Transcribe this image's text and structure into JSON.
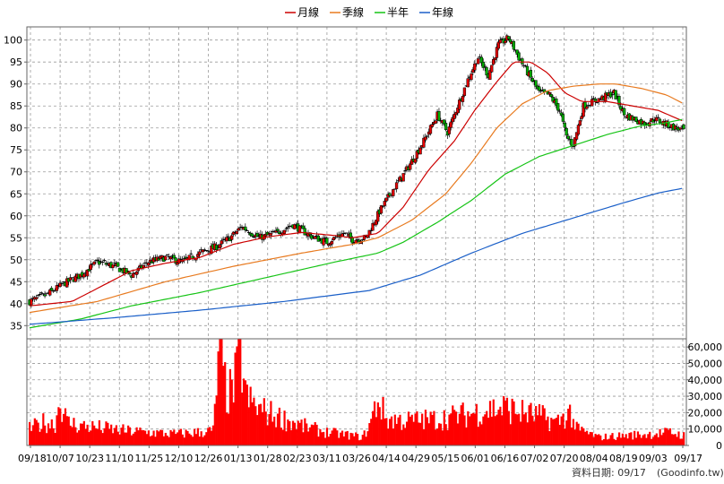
{
  "chart_data": {
    "type": "candlestick",
    "legend": [
      {
        "name": "月線",
        "color": "#cc0000"
      },
      {
        "name": "季線",
        "color": "#e87a1f"
      },
      {
        "name": "半年",
        "color": "#16c416"
      },
      {
        "name": "年線",
        "color": "#1a5fc8"
      }
    ],
    "price_axis": {
      "ylim": [
        32,
        103
      ],
      "ticks": [
        35,
        40,
        45,
        50,
        55,
        60,
        65,
        70,
        75,
        80,
        85,
        90,
        95,
        100
      ],
      "side": "left"
    },
    "volume_axis": {
      "ylim": [
        0,
        65000
      ],
      "ticks": [
        0,
        10000,
        20000,
        30000,
        40000,
        50000,
        60000
      ],
      "tick_labels": [
        "0",
        "10,000",
        "20,000",
        "30,000",
        "40,000",
        "50,000",
        "60,000"
      ],
      "side": "right"
    },
    "x_ticks": [
      "09/18",
      "10/07",
      "10/23",
      "11/10",
      "11/25",
      "12/10",
      "12/26",
      "01/13",
      "01/28",
      "02/23",
      "03/11",
      "03/26",
      "04/14",
      "04/29",
      "05/15",
      "06/01",
      "06/16",
      "07/02",
      "07/20",
      "08/04",
      "08/19",
      "09/03",
      "09/17"
    ],
    "close_keypoints": [
      [
        0,
        40.5
      ],
      [
        10,
        42
      ],
      [
        20,
        44.5
      ],
      [
        30,
        46.5
      ],
      [
        40,
        49.5
      ],
      [
        50,
        48.5
      ],
      [
        60,
        46.5
      ],
      [
        70,
        49.5
      ],
      [
        80,
        50.5
      ],
      [
        90,
        49.5
      ],
      [
        100,
        51.5
      ],
      [
        110,
        53
      ],
      [
        118,
        55
      ],
      [
        125,
        57.5
      ],
      [
        135,
        55
      ],
      [
        145,
        56
      ],
      [
        155,
        58
      ],
      [
        165,
        55.5
      ],
      [
        175,
        54
      ],
      [
        185,
        56
      ],
      [
        190,
        54.5
      ],
      [
        198,
        55
      ],
      [
        206,
        61
      ],
      [
        214,
        66
      ],
      [
        222,
        70.5
      ],
      [
        232,
        77
      ],
      [
        240,
        83
      ],
      [
        246,
        79
      ],
      [
        252,
        85
      ],
      [
        258,
        91
      ],
      [
        264,
        96
      ],
      [
        270,
        92
      ],
      [
        276,
        99
      ],
      [
        282,
        100.5
      ],
      [
        288,
        96
      ],
      [
        294,
        92
      ],
      [
        300,
        88
      ],
      [
        306,
        87.5
      ],
      [
        312,
        84
      ],
      [
        316,
        78
      ],
      [
        320,
        76
      ],
      [
        326,
        85
      ],
      [
        332,
        86
      ],
      [
        338,
        87
      ],
      [
        344,
        88
      ],
      [
        350,
        83
      ],
      [
        356,
        82
      ],
      [
        362,
        81
      ],
      [
        368,
        82
      ],
      [
        374,
        81
      ],
      [
        380,
        80
      ],
      [
        385,
        79.5
      ]
    ],
    "moving_averages": {
      "月線": [
        [
          0,
          39.5
        ],
        [
          25,
          40.5
        ],
        [
          45,
          44.5
        ],
        [
          60,
          47.5
        ],
        [
          80,
          49.2
        ],
        [
          100,
          50.5
        ],
        [
          120,
          53.5
        ],
        [
          140,
          55.2
        ],
        [
          160,
          56.2
        ],
        [
          180,
          55.5
        ],
        [
          190,
          55
        ],
        [
          205,
          56
        ],
        [
          220,
          62
        ],
        [
          235,
          70.5
        ],
        [
          250,
          77
        ],
        [
          262,
          84
        ],
        [
          275,
          90.5
        ],
        [
          285,
          95
        ],
        [
          295,
          95
        ],
        [
          305,
          92.5
        ],
        [
          315,
          88
        ],
        [
          325,
          86
        ],
        [
          340,
          86
        ],
        [
          355,
          85
        ],
        [
          370,
          84
        ],
        [
          385,
          81.5
        ]
      ],
      "季線": [
        [
          0,
          38
        ],
        [
          40,
          40.5
        ],
        [
          80,
          45
        ],
        [
          120,
          48.5
        ],
        [
          160,
          51.5
        ],
        [
          190,
          53.5
        ],
        [
          205,
          55
        ],
        [
          225,
          59
        ],
        [
          245,
          65
        ],
        [
          260,
          72
        ],
        [
          275,
          80
        ],
        [
          290,
          85.5
        ],
        [
          305,
          88.5
        ],
        [
          320,
          89.5
        ],
        [
          335,
          90
        ],
        [
          345,
          90
        ],
        [
          360,
          89
        ],
        [
          375,
          87.5
        ],
        [
          385,
          85.5
        ]
      ],
      "半年": [
        [
          0,
          34.5
        ],
        [
          30,
          36.5
        ],
        [
          60,
          39.5
        ],
        [
          100,
          42.5
        ],
        [
          140,
          46
        ],
        [
          180,
          49.5
        ],
        [
          205,
          51.5
        ],
        [
          220,
          54
        ],
        [
          240,
          58.5
        ],
        [
          260,
          63.5
        ],
        [
          280,
          69.5
        ],
        [
          300,
          73.5
        ],
        [
          320,
          76
        ],
        [
          340,
          78.5
        ],
        [
          360,
          80.5
        ],
        [
          372,
          81
        ],
        [
          385,
          82
        ]
      ],
      "年線": [
        [
          0,
          35.3
        ],
        [
          50,
          36.8
        ],
        [
          100,
          38.5
        ],
        [
          150,
          40.5
        ],
        [
          200,
          43
        ],
        [
          230,
          46.5
        ],
        [
          260,
          51.5
        ],
        [
          290,
          56
        ],
        [
          320,
          59.5
        ],
        [
          350,
          63
        ],
        [
          370,
          65.2
        ],
        [
          385,
          66.3
        ]
      ]
    },
    "volume_keypoints": [
      [
        0,
        10000
      ],
      [
        8,
        14000
      ],
      [
        15,
        13000
      ],
      [
        18,
        28000
      ],
      [
        22,
        14000
      ],
      [
        30,
        12000
      ],
      [
        40,
        11000
      ],
      [
        55,
        9000
      ],
      [
        70,
        8000
      ],
      [
        85,
        7000
      ],
      [
        100,
        8000
      ],
      [
        108,
        9000
      ],
      [
        112,
        60000
      ],
      [
        116,
        30000
      ],
      [
        120,
        35000
      ],
      [
        124,
        55000
      ],
      [
        128,
        28000
      ],
      [
        135,
        22000
      ],
      [
        145,
        18000
      ],
      [
        160,
        12000
      ],
      [
        175,
        8000
      ],
      [
        190,
        6000
      ],
      [
        196,
        5000
      ],
      [
        200,
        12000
      ],
      [
        205,
        28000
      ],
      [
        210,
        16000
      ],
      [
        222,
        15000
      ],
      [
        240,
        16000
      ],
      [
        258,
        19000
      ],
      [
        270,
        22000
      ],
      [
        280,
        23000
      ],
      [
        290,
        20000
      ],
      [
        300,
        18000
      ],
      [
        310,
        14000
      ],
      [
        318,
        20000
      ],
      [
        322,
        10000
      ],
      [
        335,
        5000
      ],
      [
        350,
        6000
      ],
      [
        365,
        7000
      ],
      [
        378,
        8000
      ],
      [
        385,
        6000
      ]
    ],
    "grid": true,
    "bars": 386
  },
  "footer": {
    "date_text": "資料日期: 09/17",
    "source_text": "(Goodinfo.tw)"
  }
}
